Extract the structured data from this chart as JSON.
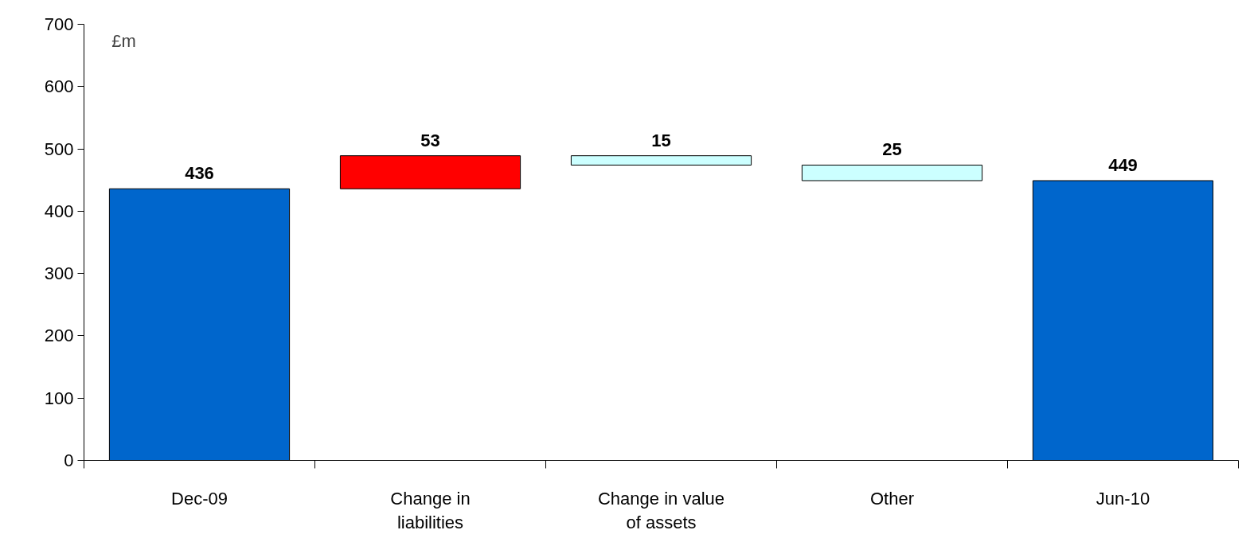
{
  "chart_data": {
    "type": "bar",
    "ylabel": "£m",
    "categories": [
      "Dec-09",
      "Change in liabilities",
      "Change in value of assets",
      "Other",
      "Jun-10"
    ],
    "values": [
      436,
      53,
      15,
      25,
      449
    ],
    "base": [
      0,
      436,
      474,
      449,
      0
    ],
    "colors": [
      "#0066cc",
      "#ff0000",
      "#ccffff",
      "#ccffff",
      "#0066cc"
    ],
    "ylim": [
      0,
      700
    ],
    "yticks": [
      0,
      100,
      200,
      300,
      400,
      500,
      600,
      700
    ],
    "data_labels": true,
    "grid": false
  }
}
